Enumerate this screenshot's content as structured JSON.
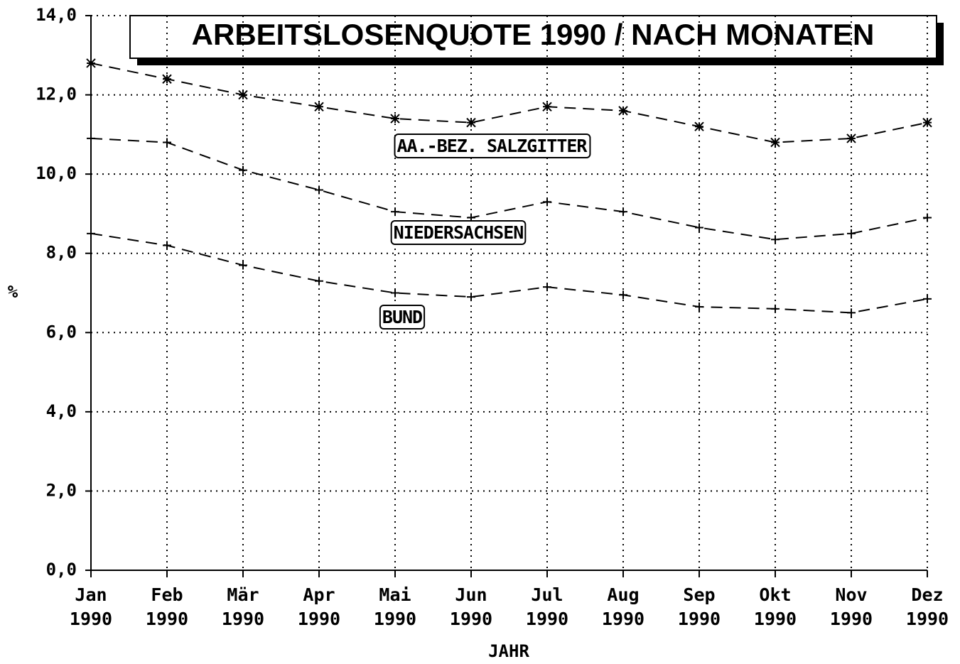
{
  "chart_data": {
    "type": "line",
    "title": "ARBEITSLOSENQUOTE 1990 / NACH MONATEN",
    "x_label": "JAHR",
    "y_label": "%",
    "categories": [
      "Jan 1990",
      "Feb 1990",
      "Mär 1990",
      "Apr 1990",
      "Mai 1990",
      "Jun 1990",
      "Jul 1990",
      "Aug 1990",
      "Sep 1990",
      "Okt 1990",
      "Nov 1990",
      "Dez 1990"
    ],
    "series": [
      {
        "name": "AA.-BEZ. SALZGITTER",
        "color": "#000000",
        "marker": "asterisk",
        "values": [
          12.8,
          12.4,
          12.0,
          11.7,
          11.4,
          11.3,
          11.7,
          11.6,
          11.2,
          10.8,
          10.9,
          11.3
        ]
      },
      {
        "name": "NIEDERSACHSEN",
        "color": "#000000",
        "marker": "plus",
        "values": [
          10.9,
          10.8,
          10.1,
          9.6,
          9.05,
          8.9,
          9.3,
          9.05,
          8.65,
          8.35,
          8.5,
          8.9
        ]
      },
      {
        "name": "BUND",
        "color": "#000000",
        "marker": "plus",
        "values": [
          8.5,
          8.2,
          7.7,
          7.3,
          7.0,
          6.9,
          7.15,
          6.95,
          6.65,
          6.6,
          6.5,
          6.85
        ]
      }
    ],
    "ylim": [
      0,
      14
    ],
    "yticks": [
      {
        "value": 0,
        "label": "0,0"
      },
      {
        "value": 2,
        "label": "2,0"
      },
      {
        "value": 4,
        "label": "4,0"
      },
      {
        "value": 6,
        "label": "6,0"
      },
      {
        "value": 8,
        "label": "8,0"
      },
      {
        "value": 10,
        "label": "10,0"
      },
      {
        "value": 12,
        "label": "12,0"
      },
      {
        "value": 14,
        "label": "14,0"
      }
    ],
    "grid": true
  }
}
